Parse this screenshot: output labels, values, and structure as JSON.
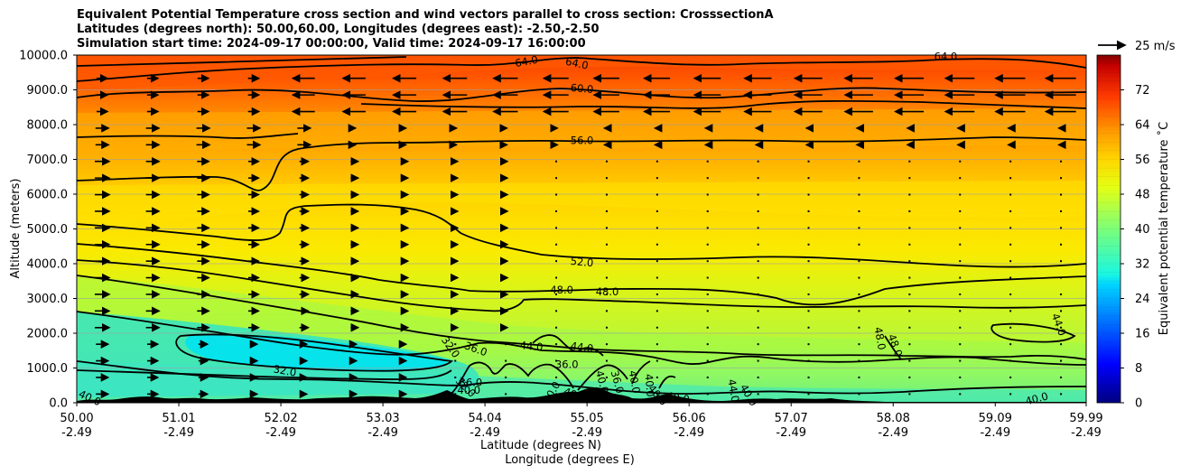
{
  "titles": [
    "Equivalent Potential Temperature cross section and wind vectors parallel to cross section: CrosssectionA",
    "Latitudes (degrees north): 50.00,60.00, Longitudes (degrees east): -2.50,-2.50",
    "Simulation start time: 2024-09-17 00:00:00, Valid time: 2024-09-17 16:00:00"
  ],
  "chart_data": {
    "type": "heatmap",
    "subtype": "filled-contour cross section with wind vectors",
    "title": "Equivalent Potential Temperature cross section and wind vectors parallel to cross section: CrosssectionA",
    "ylabel": "Altitude (meters)",
    "xlabel_lines": [
      "Latitude (degrees N)",
      "Longitude (degrees E)"
    ],
    "ylim": [
      0,
      10000
    ],
    "yticks": [
      "0.0",
      "1000.0",
      "2000.0",
      "3000.0",
      "4000.0",
      "5000.0",
      "6000.0",
      "7000.0",
      "8000.0",
      "9000.0",
      "10000.0"
    ],
    "xticks": [
      {
        "lat": "50.00",
        "lon": "-2.49"
      },
      {
        "lat": "51.01",
        "lon": "-2.49"
      },
      {
        "lat": "52.02",
        "lon": "-2.49"
      },
      {
        "lat": "53.03",
        "lon": "-2.49"
      },
      {
        "lat": "54.04",
        "lon": "-2.49"
      },
      {
        "lat": "55.05",
        "lon": "-2.49"
      },
      {
        "lat": "56.06",
        "lon": "-2.49"
      },
      {
        "lat": "57.07",
        "lon": "-2.49"
      },
      {
        "lat": "58.08",
        "lon": "-2.49"
      },
      {
        "lat": "59.09",
        "lon": "-2.49"
      },
      {
        "lat": "59.99",
        "lon": "-2.49"
      }
    ],
    "colorbar": {
      "label": "Equivalent potential temperature ˚C",
      "range": [
        0,
        80
      ],
      "ticks": [
        "0",
        "8",
        "16",
        "24",
        "32",
        "40",
        "48",
        "56",
        "64",
        "72"
      ]
    },
    "quiver_key": "25 m/s",
    "contour_labels": [
      {
        "text": "64.0",
        "lat": 54.45,
        "alt": 9820,
        "rot": -10
      },
      {
        "text": "64.0",
        "lat": 54.95,
        "alt": 9760,
        "rot": 12
      },
      {
        "text": "64.0",
        "lat": 58.6,
        "alt": 9960,
        "rot": 0
      },
      {
        "text": "60.0",
        "lat": 55.0,
        "alt": 9040,
        "rot": 5
      },
      {
        "text": "56.0",
        "lat": 55.0,
        "alt": 7550,
        "rot": 0
      },
      {
        "text": "52.0",
        "lat": 55.0,
        "alt": 4050,
        "rot": 5
      },
      {
        "text": "48.0",
        "lat": 54.8,
        "alt": 3250,
        "rot": 0
      },
      {
        "text": "48.0",
        "lat": 55.25,
        "alt": 3200,
        "rot": 0
      },
      {
        "text": "44.0",
        "lat": 54.5,
        "alt": 1630,
        "rot": 5
      },
      {
        "text": "44.0",
        "lat": 55.0,
        "alt": 1600,
        "rot": 8
      },
      {
        "text": "36.0",
        "lat": 53.95,
        "alt": 1550,
        "rot": 20
      },
      {
        "text": "32.0",
        "lat": 53.7,
        "alt": 1600,
        "rot": 55
      },
      {
        "text": "36.0",
        "lat": 54.85,
        "alt": 1100,
        "rot": 0
      },
      {
        "text": "32.0",
        "lat": 52.06,
        "alt": 920,
        "rot": 10
      },
      {
        "text": "40.0",
        "lat": 50.13,
        "alt": 140,
        "rot": 25
      },
      {
        "text": "44.0",
        "lat": 59.72,
        "alt": 2250,
        "rot": 70
      },
      {
        "text": "48.0",
        "lat": 57.95,
        "alt": 1850,
        "rot": 80
      },
      {
        "text": "48.0",
        "lat": 58.1,
        "alt": 1650,
        "rot": 70
      },
      {
        "text": "40.0",
        "lat": 59.5,
        "alt": 120,
        "rot": -15
      },
      {
        "text": "44.0",
        "lat": 56.5,
        "alt": 350,
        "rot": 80
      },
      {
        "text": "40.0",
        "lat": 56.65,
        "alt": 220,
        "rot": 60
      },
      {
        "text": "40.0",
        "lat": 55.67,
        "alt": 500,
        "rot": 85
      },
      {
        "text": "40.0",
        "lat": 55.75,
        "alt": 220,
        "rot": 50
      },
      {
        "text": "40.0",
        "lat": 55.95,
        "alt": 150,
        "rot": 10
      },
      {
        "text": "40.0",
        "lat": 55.2,
        "alt": 600,
        "rot": 75
      },
      {
        "text": "36.0",
        "lat": 55.35,
        "alt": 600,
        "rot": 75
      },
      {
        "text": "40.0",
        "lat": 54.7,
        "alt": 300,
        "rot": -60
      },
      {
        "text": "40.0",
        "lat": 54.93,
        "alt": 230,
        "rot": 20
      },
      {
        "text": "36.0",
        "lat": 53.9,
        "alt": 580,
        "rot": 0
      },
      {
        "text": "40.0",
        "lat": 53.88,
        "alt": 360,
        "rot": 0
      },
      {
        "text": "32.0",
        "lat": 53.85,
        "alt": 450,
        "rot": 45
      },
      {
        "text": "40.0",
        "lat": 55.52,
        "alt": 600,
        "rot": 80
      }
    ]
  }
}
